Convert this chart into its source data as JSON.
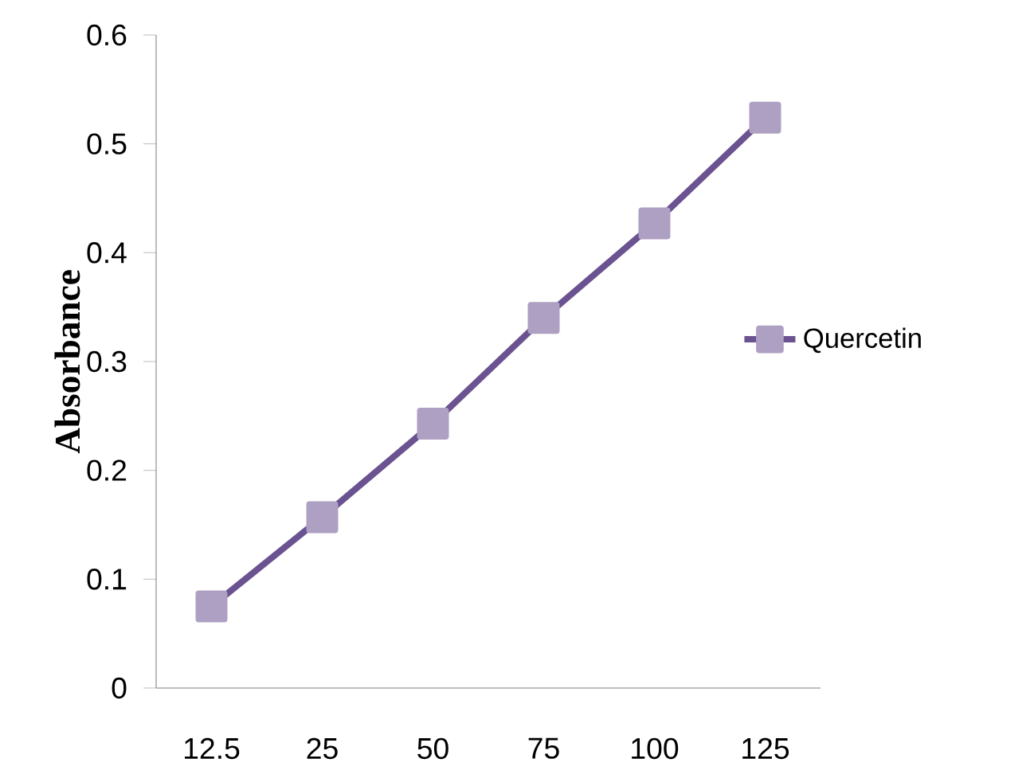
{
  "chart_data": {
    "type": "line",
    "ylabel": "Absorbance",
    "categories": [
      "12.5",
      "25",
      "50",
      "75",
      "100",
      "125"
    ],
    "series": [
      {
        "name": "Quercetin",
        "color": "#6b5290",
        "values": [
          0.075,
          0.157,
          0.243,
          0.34,
          0.427,
          0.524
        ]
      }
    ],
    "ylim": [
      0,
      0.6
    ],
    "yticks": [
      0,
      0.1,
      0.2,
      0.3,
      0.4,
      0.5,
      0.6
    ],
    "grid": false,
    "legend": "right",
    "marker": "square",
    "line_style": "solid"
  }
}
